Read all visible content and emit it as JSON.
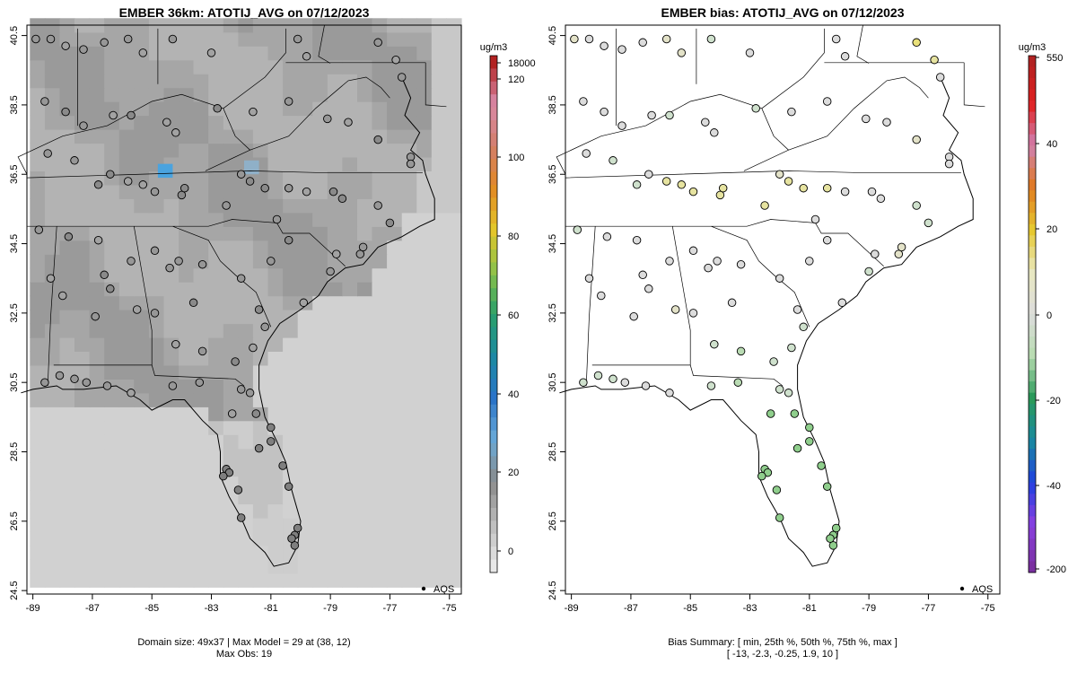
{
  "chart_data": [
    {
      "type": "heatmap",
      "title": "EMBER 36km: ATOTIJ_AVG on 07/12/2023",
      "xlim": [
        -89.2,
        -74.6
      ],
      "ylim": [
        24.4,
        40.8
      ],
      "xticks": [
        -89,
        -87,
        -85,
        -83,
        -81,
        -79,
        -77,
        -75
      ],
      "xtick_labels": [
        "-89",
        "-87",
        "-85",
        "-83",
        "-81",
        "-79",
        "-77",
        "-75"
      ],
      "yticks": [
        24.5,
        26.5,
        28.5,
        30.5,
        32.5,
        34.5,
        36.5,
        38.5,
        40.5
      ],
      "ytick_labels": [
        "24.5",
        "26.5",
        "28.5",
        "30.5",
        "32.5",
        "34.5",
        "36.5",
        "38.5",
        "40.5"
      ],
      "legend_label": "AQS",
      "colorbar": {
        "unit": "ug/m3",
        "labels": [
          "18000",
          "120",
          "100",
          "80",
          "60",
          "40",
          "20",
          "0"
        ]
      },
      "caption_line1": "Domain size: 49x37 | Max Model = 29 at (38, 12)",
      "caption_line2": "Max Obs: 19"
    },
    {
      "type": "scatter",
      "title": "EMBER bias: ATOTIJ_AVG on 07/12/2023",
      "xlim": [
        -89.2,
        -74.6
      ],
      "ylim": [
        24.4,
        40.8
      ],
      "xticks": [
        -89,
        -87,
        -85,
        -83,
        -81,
        -79,
        -77,
        -75
      ],
      "xtick_labels": [
        "-89",
        "-87",
        "-85",
        "-83",
        "-81",
        "-79",
        "-77",
        "-75"
      ],
      "yticks": [
        24.5,
        26.5,
        28.5,
        30.5,
        32.5,
        34.5,
        36.5,
        38.5,
        40.5
      ],
      "ytick_labels": [
        "24.5",
        "26.5",
        "28.5",
        "30.5",
        "32.5",
        "34.5",
        "36.5",
        "38.5",
        "40.5"
      ],
      "legend_label": "AQS",
      "colorbar": {
        "unit": "ug/m3",
        "labels": [
          "550",
          "40",
          "20",
          "0",
          "-20",
          "-40",
          "-200"
        ]
      },
      "caption_line1": "Bias Summary: [ min, 25th %, 50th %, 75th %, max ]",
      "caption_line2": "[ -13,   -2.3,   -0.25,   1.9,   10 ]",
      "bias_summary": {
        "min": -13,
        "p25": -2.3,
        "p50": -0.25,
        "p75": 1.9,
        "max": 10
      }
    }
  ]
}
